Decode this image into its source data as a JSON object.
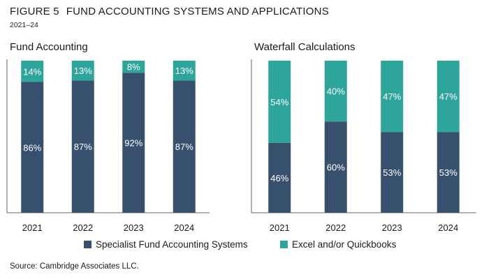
{
  "figure": {
    "label": "FIGURE 5",
    "title": "FUND ACCOUNTING SYSTEMS AND APPLICATIONS",
    "subtitle": "2021–24",
    "source": "Source: Cambridge Associates LLC."
  },
  "colors": {
    "specialist": "#37506e",
    "excel": "#2ea59a",
    "axis": "#666666"
  },
  "chart_data": [
    {
      "type": "bar",
      "stacked": true,
      "title": "Fund Accounting",
      "categories": [
        "2021",
        "2022",
        "2023",
        "2024"
      ],
      "ylim": [
        0,
        100
      ],
      "grid": false,
      "legend": "bottom",
      "series": [
        {
          "name": "Specialist Fund Accounting Systems",
          "values": [
            86,
            87,
            92,
            87
          ],
          "labels": [
            "86%",
            "87%",
            "92%",
            "87%"
          ]
        },
        {
          "name": "Excel and/or Quickbooks",
          "values": [
            14,
            13,
            8,
            13
          ],
          "labels": [
            "14%",
            "13%",
            "8%",
            "13%"
          ]
        }
      ]
    },
    {
      "type": "bar",
      "stacked": true,
      "title": "Waterfall Calculations",
      "categories": [
        "2021",
        "2022",
        "2023",
        "2024"
      ],
      "ylim": [
        0,
        100
      ],
      "grid": false,
      "legend": "bottom",
      "series": [
        {
          "name": "Specialist Fund Accounting Systems",
          "values": [
            46,
            60,
            53,
            53
          ],
          "labels": [
            "46%",
            "60%",
            "53%",
            "53%"
          ]
        },
        {
          "name": "Excel and/or Quickbooks",
          "values": [
            54,
            40,
            47,
            47
          ],
          "labels": [
            "54%",
            "40%",
            "47%",
            "47%"
          ]
        }
      ]
    }
  ]
}
